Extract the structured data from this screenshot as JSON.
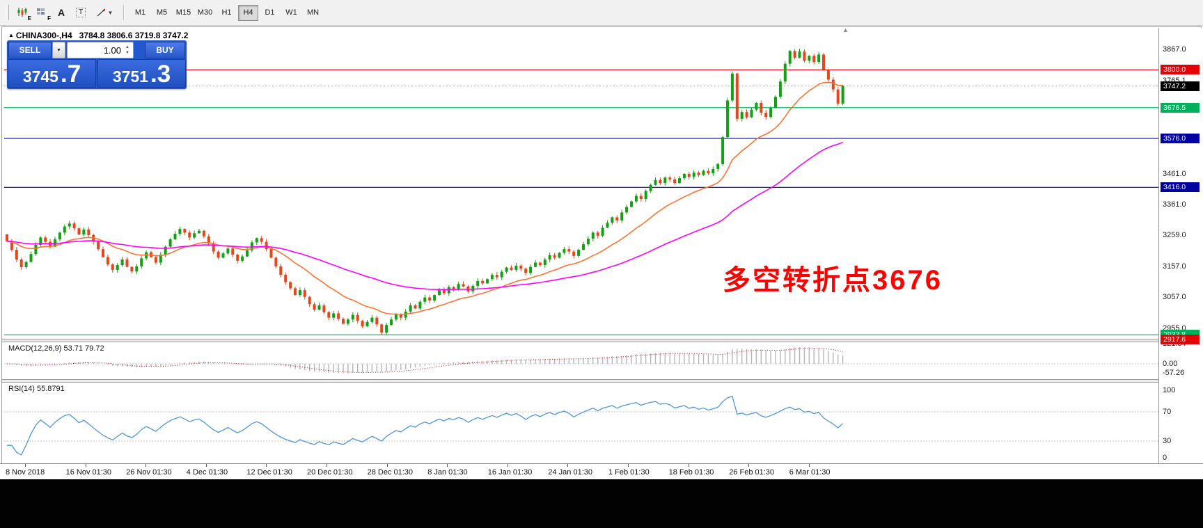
{
  "toolbar": {
    "icon_labels": {
      "e": "E",
      "f": "F",
      "a": "A",
      "t": "T"
    },
    "dropdown_caret": "▼",
    "timeframes": [
      "M1",
      "M5",
      "M15",
      "M30",
      "H1",
      "H4",
      "D1",
      "W1",
      "MN"
    ],
    "active_timeframe": "H4"
  },
  "header": {
    "collapse_icon": "▲",
    "symbol": "CHINA300-,H4",
    "ohlc": "3784.8 3806.6 3719.8 3747.2",
    "shift_marker_icon": "▲"
  },
  "trade_panel": {
    "sell_label": "SELL",
    "buy_label": "BUY",
    "volume": "1.00",
    "caret_up": "▲",
    "caret_down": "▼",
    "sell_price_main": "3745",
    "sell_price_big": ".7",
    "buy_price_main": "3751",
    "buy_price_big": ".3",
    "panel_color": "#2257cf"
  },
  "annotation": {
    "text": "多空转折点3676",
    "color": "#ff0000"
  },
  "price_axis": {
    "labels": [
      {
        "text": "3867.0",
        "price": 3867.0
      },
      {
        "text": "3765.1",
        "price": 3765.1
      },
      {
        "text": "3461.0",
        "price": 3461.0
      },
      {
        "text": "3361.0",
        "price": 3361.0
      },
      {
        "text": "3259.0",
        "price": 3259.0
      },
      {
        "text": "3157.0",
        "price": 3157.0
      },
      {
        "text": "3057.0",
        "price": 3057.0
      },
      {
        "text": "2955.0",
        "price": 2955.0
      }
    ],
    "markers": [
      {
        "text": "3800.0",
        "price": 3800.0,
        "color": "#e60000"
      },
      {
        "text": "3747.2",
        "price": 3747.2,
        "color": "#000000"
      },
      {
        "text": "3676.5",
        "price": 3676.5,
        "color": "#00b05a"
      },
      {
        "text": "3576.0",
        "price": 3576.0,
        "color": "#0000a0"
      },
      {
        "text": "3416.0",
        "price": 3416.0,
        "color": "#0000a0"
      },
      {
        "text": "2933.8",
        "price": 2933.8,
        "color": "#00b05a"
      },
      {
        "text": "2917.6",
        "price": 2917.6,
        "color": "#e60000"
      }
    ]
  },
  "hlines": [
    {
      "price": 3800.0,
      "color": "#e60000"
    },
    {
      "price": 3676.5,
      "color": "#00c060"
    },
    {
      "price": 3576.0,
      "color": "#0000a0"
    },
    {
      "price": 3416.0,
      "color": "#0000a0"
    },
    {
      "price": 2933.8,
      "color": "#00c060"
    }
  ],
  "current_price": {
    "value": 3747.2,
    "line_color": "#aaaaaa"
  },
  "macd_panel": {
    "title": "MACD(12,26,9) 53.71 79.72",
    "axis_labels": [
      {
        "text": "121.84",
        "value": 121.84
      },
      {
        "text": "0.00",
        "value": 0
      },
      {
        "text": "-57.26",
        "value": -57.26
      }
    ],
    "histogram_color": "#b4b4bc",
    "signal_color": "#cc0000"
  },
  "rsi_panel": {
    "title": "RSI(14) 55.8791",
    "axis_labels": [
      {
        "text": "100",
        "value": 100
      },
      {
        "text": "70",
        "value": 70
      },
      {
        "text": "30",
        "value": 30
      },
      {
        "text": "0",
        "value": 0
      }
    ],
    "levels": [
      70,
      30
    ],
    "line_color": "#4e96d9"
  },
  "x_axis": [
    "8 Nov 2018",
    "16 Nov 01:30",
    "26 Nov 01:30",
    "4 Dec 01:30",
    "12 Dec 01:30",
    "20 Dec 01:30",
    "28 Dec 01:30",
    "8 Jan 01:30",
    "16 Jan 01:30",
    "24 Jan 01:30",
    "1 Feb 01:30",
    "18 Feb 01:30",
    "26 Feb 01:30",
    "6 Mar 01:30"
  ],
  "chart_data": {
    "type": "candlestick",
    "symbol": "CHINA300-",
    "timeframe": "H4",
    "title": "CHINA300-,H4",
    "last_bar": {
      "open": 3784.8,
      "high": 3806.6,
      "low": 3719.8,
      "close": 3747.2
    },
    "visible_price_range": [
      2917.6,
      3928.0
    ],
    "colors": {
      "up": "#12a112",
      "down": "#e8461a"
    },
    "overlays": [
      {
        "type": "ema",
        "period": 18,
        "color": "#ff7232",
        "name": "fast-ma"
      },
      {
        "type": "ema",
        "period": 60,
        "color": "#ff00ff",
        "name": "slow-ma"
      }
    ],
    "indicators": [
      {
        "name": "MACD",
        "params": [
          12,
          26,
          9
        ],
        "values_text": "53.71 79.72",
        "scale": [
          -57.26,
          121.84
        ]
      },
      {
        "name": "RSI",
        "params": [
          14
        ],
        "value_text": "55.8791",
        "scale": [
          0,
          100
        ],
        "levels": [
          30,
          70
        ]
      }
    ],
    "first_open": 3262,
    "closes": [
      3240,
      3212,
      3180,
      3155,
      3172,
      3198,
      3228,
      3252,
      3238,
      3222,
      3246,
      3268,
      3288,
      3298,
      3282,
      3262,
      3278,
      3260,
      3238,
      3214,
      3188,
      3164,
      3146,
      3162,
      3180,
      3156,
      3141,
      3158,
      3184,
      3204,
      3188,
      3170,
      3196,
      3222,
      3246,
      3264,
      3280,
      3268,
      3252,
      3266,
      3274,
      3256,
      3232,
      3206,
      3186,
      3200,
      3216,
      3196,
      3176,
      3190,
      3210,
      3236,
      3250,
      3238,
      3214,
      3186,
      3158,
      3130,
      3106,
      3086,
      3064,
      3080,
      3058,
      3034,
      3016,
      3030,
      3008,
      2990,
      3004,
      2986,
      2970,
      2984,
      2999,
      2980,
      2962,
      2976,
      2990,
      2968,
      2941,
      2966,
      2984,
      3000,
      2990,
      3010,
      3030,
      3020,
      3042,
      3056,
      3046,
      3064,
      3080,
      3070,
      3090,
      3084,
      3100,
      3092,
      3076,
      3094,
      3110,
      3102,
      3116,
      3130,
      3122,
      3140,
      3154,
      3146,
      3160,
      3150,
      3136,
      3156,
      3170,
      3162,
      3180,
      3194,
      3186,
      3202,
      3214,
      3206,
      3192,
      3212,
      3230,
      3248,
      3268,
      3258,
      3284,
      3300,
      3318,
      3308,
      3334,
      3352,
      3370,
      3388,
      3378,
      3404,
      3424,
      3440,
      3430,
      3448,
      3442,
      3430,
      3446,
      3460,
      3450,
      3464,
      3456,
      3470,
      3462,
      3476,
      3492,
      3580,
      3700,
      3788,
      3640,
      3662,
      3645,
      3670,
      3692,
      3660,
      3646,
      3676,
      3712,
      3762,
      3820,
      3862,
      3840,
      3860,
      3830,
      3846,
      3826,
      3850,
      3800,
      3768,
      3736,
      3690,
      3747.2
    ]
  }
}
